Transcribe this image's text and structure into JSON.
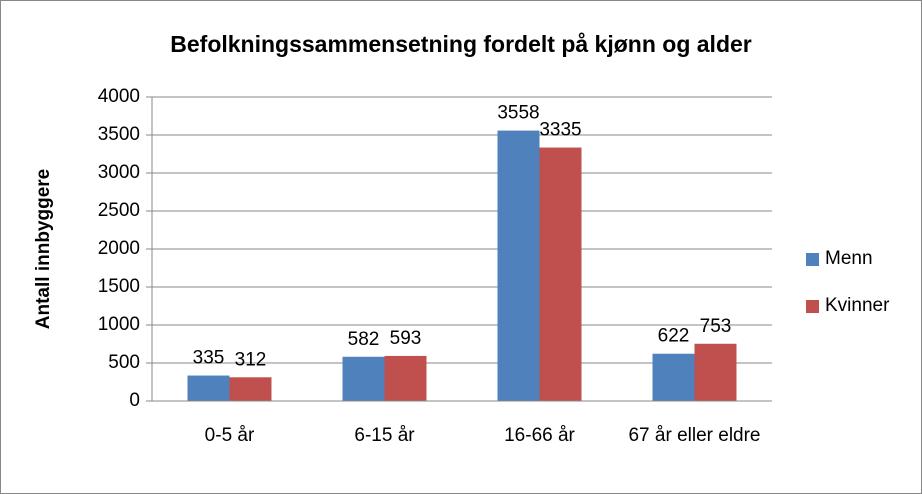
{
  "chart_data": {
    "type": "bar",
    "title": "Befolkningssammensetning fordelt på kjønn og alder",
    "y_label": "Antall innbyggere",
    "categories": [
      "0-5 år",
      "6-15 år",
      "16-66 år",
      "67 år eller eldre"
    ],
    "series": [
      {
        "name": "Menn",
        "color": "#4f81bd",
        "values": [
          335,
          582,
          3558,
          622
        ]
      },
      {
        "name": "Kvinner",
        "color": "#c0504d",
        "values": [
          312,
          593,
          3335,
          753
        ]
      }
    ],
    "ylim": [
      0,
      4000
    ],
    "yticks": [
      0,
      500,
      1000,
      1500,
      2000,
      2500,
      3000,
      3500,
      4000
    ],
    "grid": true,
    "legend": "right"
  }
}
